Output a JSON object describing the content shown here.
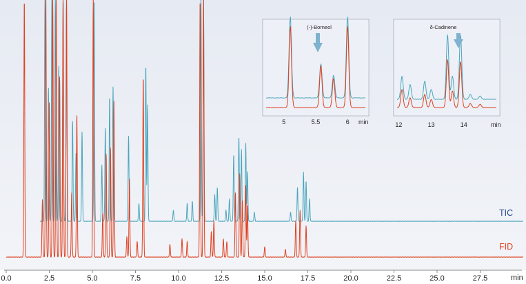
{
  "chart_data": {
    "type": "line",
    "title": "",
    "xlabel": "min",
    "ylabel": "",
    "x_ticks": [
      "0.0",
      "2.5",
      "5.0",
      "7.5",
      "10.0",
      "12.5",
      "15.0",
      "17.5",
      "20.0",
      "22.5",
      "25.0",
      "27.5"
    ],
    "xlim": [
      0,
      30
    ],
    "grid": false,
    "legend": "right-of-traces",
    "colors": {
      "TIC": "#4aa6bd",
      "FID": "#e04020",
      "background": "#e9ecf3",
      "arrow": "#7fb2cf"
    },
    "series": [
      {
        "name": "TIC",
        "peaks": [
          [
            2.25,
            100
          ],
          [
            2.45,
            60
          ],
          [
            2.65,
            100
          ],
          [
            2.85,
            100
          ],
          [
            3.05,
            70
          ],
          [
            3.3,
            100
          ],
          [
            3.5,
            100
          ],
          [
            3.85,
            45
          ],
          [
            4.05,
            30
          ],
          [
            4.4,
            40
          ],
          [
            5.1,
            100
          ],
          [
            5.55,
            25
          ],
          [
            5.75,
            42
          ],
          [
            6.0,
            56
          ],
          [
            6.2,
            60
          ],
          [
            7.1,
            38
          ],
          [
            7.7,
            8
          ],
          [
            8.1,
            70
          ],
          [
            8.2,
            52
          ],
          [
            9.7,
            5
          ],
          [
            10.5,
            8
          ],
          [
            10.8,
            9
          ],
          [
            11.3,
            100
          ],
          [
            11.45,
            100
          ],
          [
            12.1,
            12
          ],
          [
            12.25,
            15
          ],
          [
            12.75,
            5
          ],
          [
            12.95,
            10
          ],
          [
            13.2,
            30
          ],
          [
            13.5,
            38
          ],
          [
            13.65,
            32
          ],
          [
            13.9,
            35
          ],
          [
            14.0,
            22
          ],
          [
            14.4,
            4
          ],
          [
            16.5,
            4
          ],
          [
            16.9,
            15
          ],
          [
            17.25,
            22
          ],
          [
            17.4,
            18
          ],
          [
            17.6,
            10
          ]
        ]
      },
      {
        "name": "FID",
        "peaks": [
          [
            1.05,
            100
          ],
          [
            2.1,
            22
          ],
          [
            2.3,
            100
          ],
          [
            2.5,
            60
          ],
          [
            2.7,
            100
          ],
          [
            2.9,
            100
          ],
          [
            3.1,
            70
          ],
          [
            3.3,
            100
          ],
          [
            3.5,
            100
          ],
          [
            3.8,
            25
          ],
          [
            4.1,
            55
          ],
          [
            5.05,
            100
          ],
          [
            5.6,
            17
          ],
          [
            5.8,
            40
          ],
          [
            6.05,
            42
          ],
          [
            6.25,
            60
          ],
          [
            7.0,
            8
          ],
          [
            7.15,
            30
          ],
          [
            7.6,
            6
          ],
          [
            7.95,
            70
          ],
          [
            9.5,
            5
          ],
          [
            10.2,
            7
          ],
          [
            10.5,
            6
          ],
          [
            11.25,
            100
          ],
          [
            11.45,
            100
          ],
          [
            11.9,
            10
          ],
          [
            12.05,
            14
          ],
          [
            12.6,
            7
          ],
          [
            12.8,
            6
          ],
          [
            13.3,
            25
          ],
          [
            13.55,
            32
          ],
          [
            13.7,
            22
          ],
          [
            13.9,
            28
          ],
          [
            14.0,
            20
          ],
          [
            15.0,
            4
          ],
          [
            16.2,
            3
          ],
          [
            16.8,
            14
          ],
          [
            17.05,
            18
          ],
          [
            17.4,
            12
          ]
        ]
      }
    ],
    "insets": [
      {
        "annotation": "(-)-Borneol",
        "x_ticks": [
          "5",
          "5.5",
          "6"
        ],
        "xunit": "min",
        "xlim": [
          4.72,
          6.28
        ],
        "TIC_peaks": [
          [
            5.1,
            1.0
          ],
          [
            5.58,
            0.42
          ],
          [
            5.78,
            0.28
          ],
          [
            6.0,
            1.0
          ]
        ],
        "FID_peaks": [
          [
            5.1,
            1.0
          ],
          [
            5.58,
            0.52
          ],
          [
            5.78,
            0.36
          ],
          [
            6.0,
            1.0
          ]
        ]
      },
      {
        "annotation": "δ-Cadinene",
        "x_ticks": [
          "12",
          "13",
          "14"
        ],
        "xunit": "min",
        "xlim": [
          11.95,
          15.0
        ],
        "TIC_peaks": [
          [
            12.1,
            0.28
          ],
          [
            12.35,
            0.18
          ],
          [
            12.8,
            0.22
          ],
          [
            13.0,
            0.12
          ],
          [
            13.5,
            0.78
          ],
          [
            13.65,
            0.28
          ],
          [
            13.9,
            0.78
          ],
          [
            14.2,
            0.06
          ],
          [
            14.5,
            0.04
          ]
        ],
        "FID_peaks": [
          [
            12.1,
            0.22
          ],
          [
            12.35,
            0.12
          ],
          [
            12.8,
            0.16
          ],
          [
            13.0,
            0.1
          ],
          [
            13.5,
            0.58
          ],
          [
            13.65,
            0.2
          ],
          [
            13.9,
            0.56
          ],
          [
            14.2,
            0.05
          ],
          [
            14.5,
            0.04
          ]
        ]
      }
    ]
  }
}
